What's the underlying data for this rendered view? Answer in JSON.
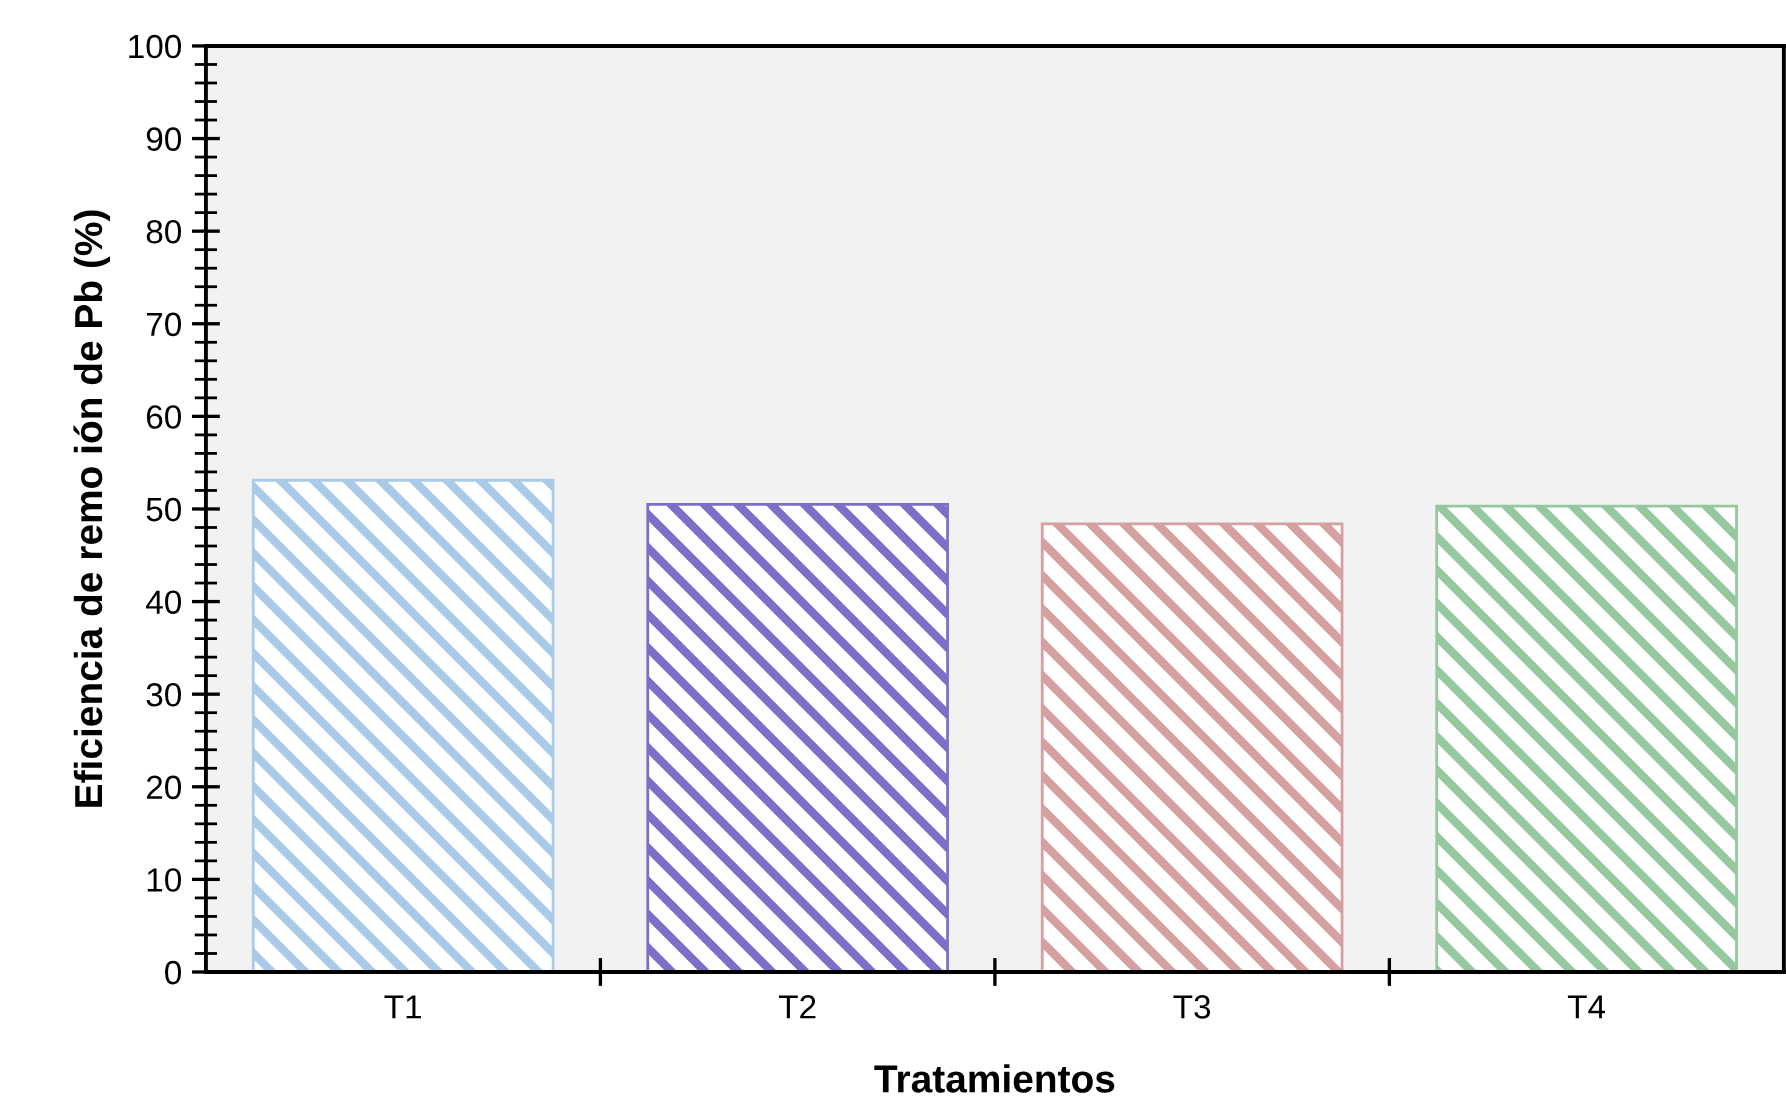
{
  "chart_data": {
    "type": "bar",
    "xlabel": "Tratamientos",
    "ylabel": "Eficiencia de remo ión de Pb (%)",
    "categories": [
      "T1",
      "T2",
      "T3",
      "T4"
    ],
    "values": [
      53.1,
      50.5,
      48.4,
      50.3
    ],
    "colors": [
      "#a9cbe8",
      "#7b6fc8",
      "#d4a0a0",
      "#96c8a0"
    ],
    "ylim": [
      0,
      100
    ],
    "yticks": [
      0,
      10,
      20,
      30,
      40,
      50,
      60,
      70,
      80,
      90,
      100
    ],
    "grid": false
  }
}
